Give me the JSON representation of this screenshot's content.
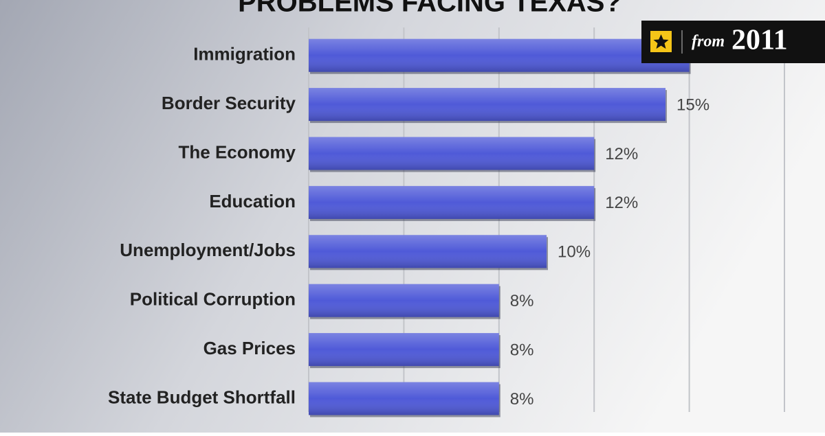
{
  "chart_data": {
    "type": "bar",
    "orientation": "horizontal",
    "title": "PROBLEMS FACING TEXAS?",
    "categories": [
      "Immigration",
      "Border Security",
      "The Economy",
      "Education",
      "Unemployment/Jobs",
      "Political Corruption",
      "Gas Prices",
      "State Budget Shortfall"
    ],
    "values": [
      16,
      15,
      12,
      12,
      10,
      8,
      8,
      8
    ],
    "value_labels": [
      null,
      "15%",
      "12%",
      "12%",
      "10%",
      "8%",
      "8%",
      "8%"
    ],
    "color": "#4f5ad8",
    "xlim": [
      0,
      20
    ],
    "xticks": [
      0,
      4,
      8,
      12,
      16,
      20
    ],
    "grid": true
  },
  "badge": {
    "prefix": "from",
    "year": "2011"
  }
}
